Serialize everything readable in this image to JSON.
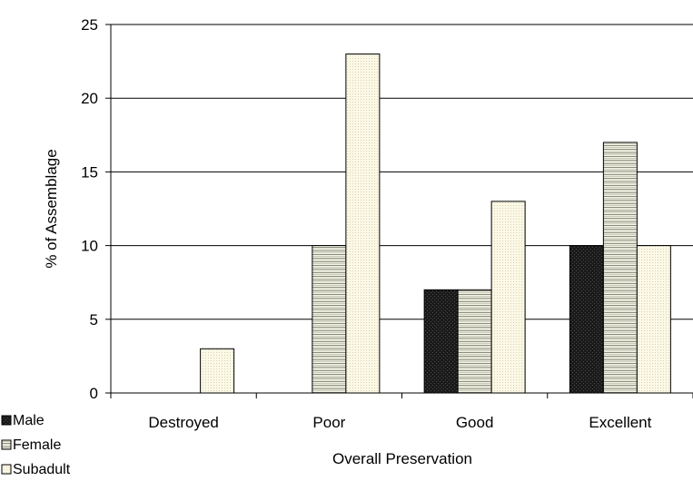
{
  "chart_data": {
    "type": "bar",
    "xlabel": "Overall Preservation",
    "ylabel": "% of Assemblage",
    "categories": [
      "Destroyed",
      "Poor",
      "Good",
      "Excellent"
    ],
    "ylim": [
      0,
      25
    ],
    "yticks": [
      0,
      5,
      10,
      15,
      20,
      25
    ],
    "grid": "horizontal",
    "legend_position": "bottom-left",
    "series": [
      {
        "name": "Male",
        "values": [
          0,
          0,
          7,
          10
        ],
        "pattern": "solid-dark"
      },
      {
        "name": "Female",
        "values": [
          0,
          10,
          7,
          17
        ],
        "pattern": "horizontal-lines"
      },
      {
        "name": "Subadult",
        "values": [
          3,
          23,
          13,
          10
        ],
        "pattern": "light-dots"
      }
    ]
  }
}
